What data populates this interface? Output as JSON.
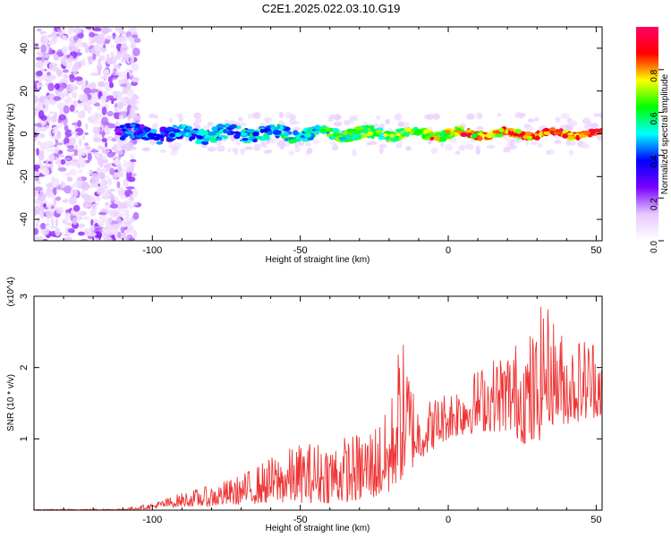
{
  "figure_title": "C2E1.2025.022.03.10.G19",
  "chart_data": [
    {
      "type": "heatmap",
      "xlabel": "Height of straight line (km)",
      "ylabel": "Frequency (Hz)",
      "xlim": [
        -140,
        52
      ],
      "ylim": [
        -50,
        50
      ],
      "x_ticks": [
        -100,
        -50,
        0,
        50
      ],
      "y_ticks": [
        -40,
        -20,
        0,
        20,
        40
      ],
      "colorbar": {
        "label": "Normalized spectral amplitude",
        "range": [
          0,
          1
        ],
        "ticks": [
          "0.0",
          "0.2",
          "0.4",
          "0.6",
          "0.8"
        ],
        "colormap": [
          "#ffffff",
          "#e6c8ff",
          "#7a00ff",
          "#0000ff",
          "#00ffff",
          "#00ff00",
          "#ffff00",
          "#ff0000",
          "#ff0066"
        ]
      },
      "features": [
        {
          "label": "noise",
          "x_range": [
            -140,
            -105
          ],
          "y_range": [
            -50,
            50
          ],
          "amplitude": 0.15
        },
        {
          "label": "signal",
          "x_range": [
            -112,
            52
          ],
          "center_frequency": 0,
          "amplitude_peak": 1.0
        }
      ]
    },
    {
      "type": "line",
      "xlabel": "Height of straight line (km)",
      "ylabel": "SNR (10 * v/v)",
      "y_multiplier": "(x10^4)",
      "xlim": [
        -140,
        52
      ],
      "ylim": [
        0,
        3
      ],
      "x_ticks": [
        -100,
        -50,
        0,
        50
      ],
      "y_ticks": [
        1,
        2,
        3
      ],
      "series": [
        {
          "color": "#ee3333",
          "envelope": {
            "x": [
              -140,
              -110,
              -100,
              -90,
              -80,
              -70,
              -60,
              -50,
              -40,
              -30,
              -20,
              -17,
              -15,
              -10,
              0,
              10,
              20,
              30,
              32,
              40,
              50,
              52
            ],
            "low": [
              0.0,
              0.0,
              0.02,
              0.05,
              0.05,
              0.08,
              0.1,
              0.1,
              0.1,
              0.12,
              0.2,
              0.4,
              0.4,
              0.7,
              1.0,
              1.1,
              1.1,
              0.8,
              1.2,
              1.2,
              1.3,
              1.3
            ],
            "high": [
              0.01,
              0.02,
              0.1,
              0.25,
              0.35,
              0.5,
              0.75,
              0.95,
              1.0,
              1.1,
              1.4,
              2.3,
              2.4,
              1.5,
              1.7,
              2.0,
              2.3,
              2.6,
              3.0,
              2.4,
              2.5,
              2.3
            ]
          }
        }
      ]
    }
  ],
  "colors": {
    "frame": "#000000",
    "background": "#ffffff",
    "snr_line": "#ee3333"
  }
}
